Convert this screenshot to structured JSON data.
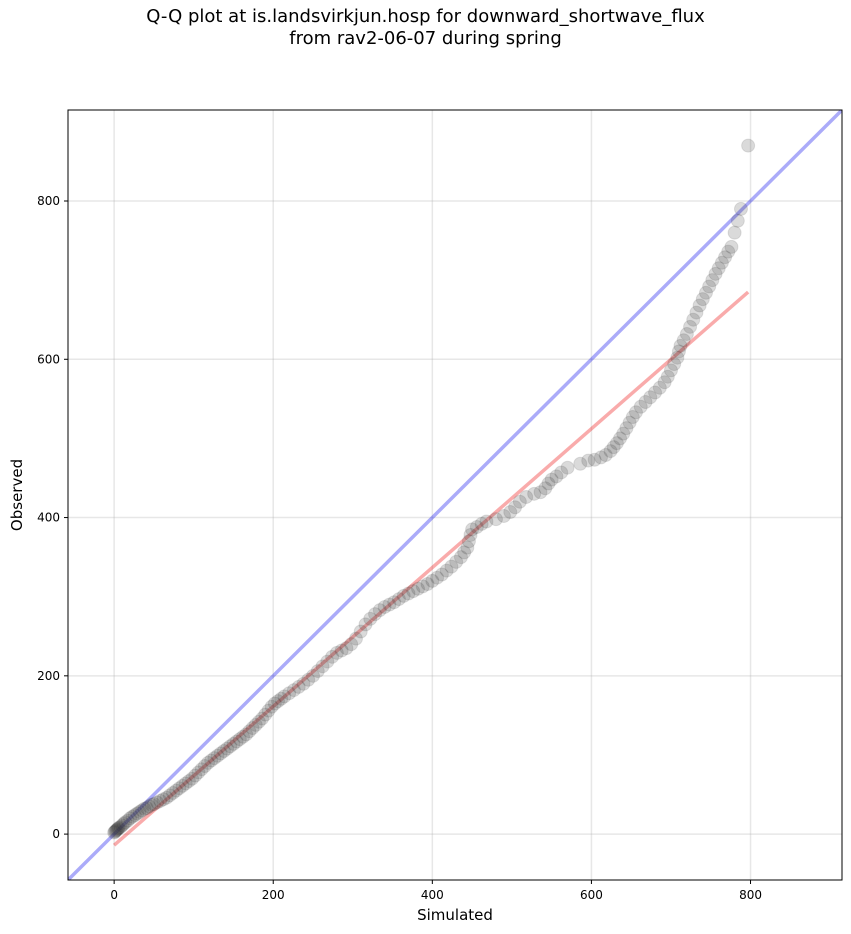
{
  "chart_data": {
    "type": "scatter",
    "title_lines": [
      "Q-Q plot at is.landsvirkjun.hosp for downward_shortwave_flux",
      "from rav2-06-07 during spring"
    ],
    "xlabel": "Simulated",
    "ylabel": "Observed",
    "xlim": [
      -58,
      915
    ],
    "ylim": [
      -58,
      915
    ],
    "xticks": [
      0,
      200,
      400,
      600,
      800
    ],
    "yticks": [
      0,
      200,
      400,
      600,
      800
    ],
    "grid": true,
    "reference_line": {
      "label": "1:1",
      "color": "#0000ee",
      "from": [
        -58,
        -58
      ],
      "to": [
        915,
        915
      ]
    },
    "fit_line": {
      "color": "#ee0000",
      "from": [
        0,
        -14
      ],
      "to": [
        797,
        685
      ]
    },
    "point_color": "#333333",
    "points": [
      [
        0,
        2
      ],
      [
        1,
        3
      ],
      [
        2,
        4
      ],
      [
        3,
        5
      ],
      [
        4,
        6
      ],
      [
        5,
        7
      ],
      [
        6,
        8
      ],
      [
        8,
        9
      ],
      [
        10,
        11
      ],
      [
        12,
        13
      ],
      [
        14,
        15
      ],
      [
        17,
        17
      ],
      [
        20,
        20
      ],
      [
        23,
        22
      ],
      [
        26,
        24
      ],
      [
        29,
        26
      ],
      [
        32,
        28
      ],
      [
        35,
        30
      ],
      [
        38,
        32
      ],
      [
        41,
        33
      ],
      [
        44,
        35
      ],
      [
        47,
        37
      ],
      [
        50,
        38
      ],
      [
        54,
        40
      ],
      [
        58,
        42
      ],
      [
        62,
        44
      ],
      [
        66,
        46
      ],
      [
        70,
        49
      ],
      [
        74,
        52
      ],
      [
        78,
        55
      ],
      [
        82,
        58
      ],
      [
        86,
        61
      ],
      [
        90,
        64
      ],
      [
        94,
        67
      ],
      [
        98,
        70
      ],
      [
        102,
        74
      ],
      [
        106,
        78
      ],
      [
        110,
        82
      ],
      [
        114,
        86
      ],
      [
        118,
        90
      ],
      [
        122,
        93
      ],
      [
        126,
        96
      ],
      [
        130,
        99
      ],
      [
        134,
        102
      ],
      [
        138,
        105
      ],
      [
        142,
        108
      ],
      [
        146,
        111
      ],
      [
        150,
        114
      ],
      [
        154,
        117
      ],
      [
        158,
        120
      ],
      [
        162,
        123
      ],
      [
        166,
        126
      ],
      [
        170,
        130
      ],
      [
        174,
        134
      ],
      [
        178,
        138
      ],
      [
        182,
        142
      ],
      [
        186,
        146
      ],
      [
        190,
        151
      ],
      [
        194,
        156
      ],
      [
        198,
        161
      ],
      [
        202,
        165
      ],
      [
        206,
        168
      ],
      [
        210,
        171
      ],
      [
        214,
        174
      ],
      [
        220,
        178
      ],
      [
        226,
        182
      ],
      [
        232,
        186
      ],
      [
        238,
        190
      ],
      [
        244,
        195
      ],
      [
        250,
        200
      ],
      [
        256,
        206
      ],
      [
        262,
        212
      ],
      [
        268,
        218
      ],
      [
        274,
        224
      ],
      [
        280,
        229
      ],
      [
        286,
        232
      ],
      [
        292,
        235
      ],
      [
        298,
        240
      ],
      [
        304,
        247
      ],
      [
        310,
        256
      ],
      [
        316,
        265
      ],
      [
        322,
        272
      ],
      [
        328,
        278
      ],
      [
        334,
        283
      ],
      [
        340,
        287
      ],
      [
        346,
        290
      ],
      [
        352,
        293
      ],
      [
        358,
        297
      ],
      [
        364,
        301
      ],
      [
        370,
        304
      ],
      [
        376,
        307
      ],
      [
        382,
        310
      ],
      [
        388,
        313
      ],
      [
        394,
        316
      ],
      [
        400,
        320
      ],
      [
        406,
        324
      ],
      [
        412,
        328
      ],
      [
        418,
        333
      ],
      [
        424,
        338
      ],
      [
        430,
        344
      ],
      [
        436,
        350
      ],
      [
        440,
        356
      ],
      [
        444,
        362
      ],
      [
        446,
        370
      ],
      [
        448,
        378
      ],
      [
        450,
        385
      ],
      [
        456,
        388
      ],
      [
        462,
        392
      ],
      [
        468,
        395
      ],
      [
        480,
        398
      ],
      [
        490,
        402
      ],
      [
        498,
        407
      ],
      [
        504,
        413
      ],
      [
        510,
        420
      ],
      [
        518,
        426
      ],
      [
        528,
        430
      ],
      [
        536,
        432
      ],
      [
        542,
        437
      ],
      [
        546,
        443
      ],
      [
        550,
        448
      ],
      [
        556,
        452
      ],
      [
        562,
        457
      ],
      [
        570,
        463
      ],
      [
        586,
        468
      ],
      [
        596,
        472
      ],
      [
        604,
        473
      ],
      [
        612,
        476
      ],
      [
        618,
        479
      ],
      [
        624,
        484
      ],
      [
        628,
        489
      ],
      [
        632,
        494
      ],
      [
        636,
        500
      ],
      [
        640,
        506
      ],
      [
        644,
        513
      ],
      [
        648,
        520
      ],
      [
        652,
        527
      ],
      [
        656,
        533
      ],
      [
        662,
        540
      ],
      [
        668,
        546
      ],
      [
        674,
        552
      ],
      [
        680,
        558
      ],
      [
        686,
        564
      ],
      [
        692,
        571
      ],
      [
        696,
        578
      ],
      [
        700,
        586
      ],
      [
        704,
        594
      ],
      [
        708,
        602
      ],
      [
        710,
        610
      ],
      [
        712,
        617
      ],
      [
        716,
        624
      ],
      [
        720,
        632
      ],
      [
        724,
        641
      ],
      [
        728,
        650
      ],
      [
        732,
        659
      ],
      [
        736,
        668
      ],
      [
        740,
        676
      ],
      [
        744,
        684
      ],
      [
        748,
        692
      ],
      [
        752,
        700
      ],
      [
        756,
        708
      ],
      [
        760,
        715
      ],
      [
        764,
        722
      ],
      [
        768,
        729
      ],
      [
        772,
        736
      ],
      [
        776,
        742
      ],
      [
        780,
        760
      ],
      [
        784,
        775
      ],
      [
        788,
        790
      ],
      [
        797,
        870
      ]
    ]
  }
}
